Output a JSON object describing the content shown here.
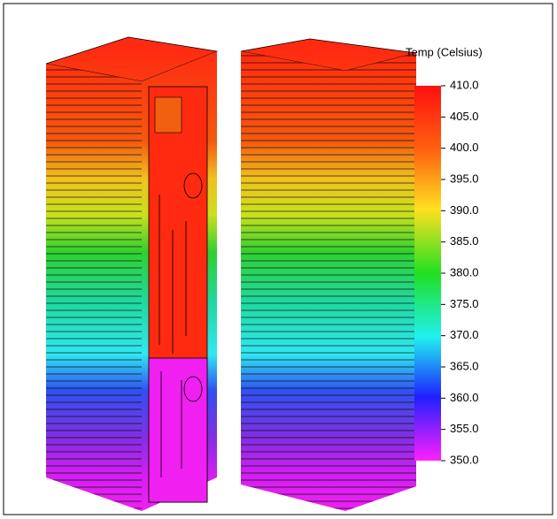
{
  "legend": {
    "title": "Temp (Celsius)",
    "ticks": [
      "410.0",
      "405.0",
      "400.0",
      "395.0",
      "390.0",
      "385.0",
      "380.0",
      "375.0",
      "370.0",
      "365.0",
      "360.0",
      "355.0",
      "350.0"
    ]
  }
}
